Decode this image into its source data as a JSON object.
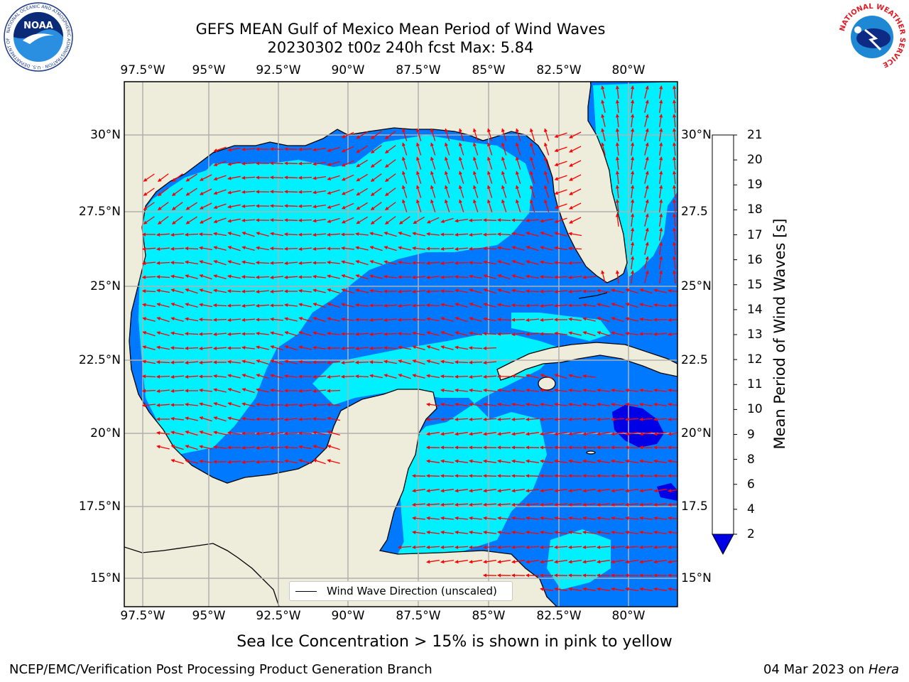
{
  "title": {
    "line1": "GEFS MEAN Gulf of Mexico Mean Period of Wind Waves",
    "line2": "20230302 t00z 240h fcst   Max: 5.84"
  },
  "map": {
    "lon_ticks": [
      "97.5°W",
      "95°W",
      "92.5°W",
      "90°W",
      "87.5°W",
      "85°W",
      "82.5°W",
      "80°W"
    ],
    "lat_ticks": [
      "30°N",
      "27.5°N",
      "25°N",
      "22.5°N",
      "20°N",
      "17.5°N",
      "15°N"
    ],
    "lat_ticks_right": [
      "30°N",
      "27.5",
      "25°N",
      "22.5",
      "20°N",
      "17.5",
      "15°N"
    ],
    "land_color": "#eeecda",
    "arrow_color": "#ff0000",
    "grid_color": "#b0b0b0"
  },
  "colorbar": {
    "label": "Mean Period of Wind Waves [s]",
    "ticks": [
      "2",
      "4",
      "6",
      "8",
      "9",
      "10",
      "11",
      "12",
      "13",
      "14",
      "15",
      "16",
      "17",
      "18",
      "19",
      "20",
      "21"
    ],
    "colors": [
      "#0000e6",
      "#0079ff",
      "#00e6ff",
      "#55f7ff",
      "#aafbff",
      "#50f57a",
      "#00e600",
      "#52e800",
      "#a6ec00",
      "#ccf000",
      "#ebf500",
      "#ffff00",
      "#ffd700",
      "#ffb000",
      "#ff8c00",
      "#ff5a00",
      "#ff2800",
      "#ff0000"
    ]
  },
  "legend": {
    "label": "Wind Wave Direction (unscaled)"
  },
  "note": "Sea Ice Concentration > 15% is shown in pink to yellow",
  "footer": {
    "left": "NCEP/EMC/Verification Post Processing Product Generation Branch",
    "date": "04 Mar 2023 on",
    "host": "Hera"
  },
  "logos": {
    "noaa_text": "NOAA",
    "noaa_ring": "NATIONAL OCEANIC AND ATMOSPHERIC ADMINISTRATION · U.S. DEPARTMENT OF COMMERCE",
    "nws_ring": "NATIONAL WEATHER SERVICE"
  }
}
